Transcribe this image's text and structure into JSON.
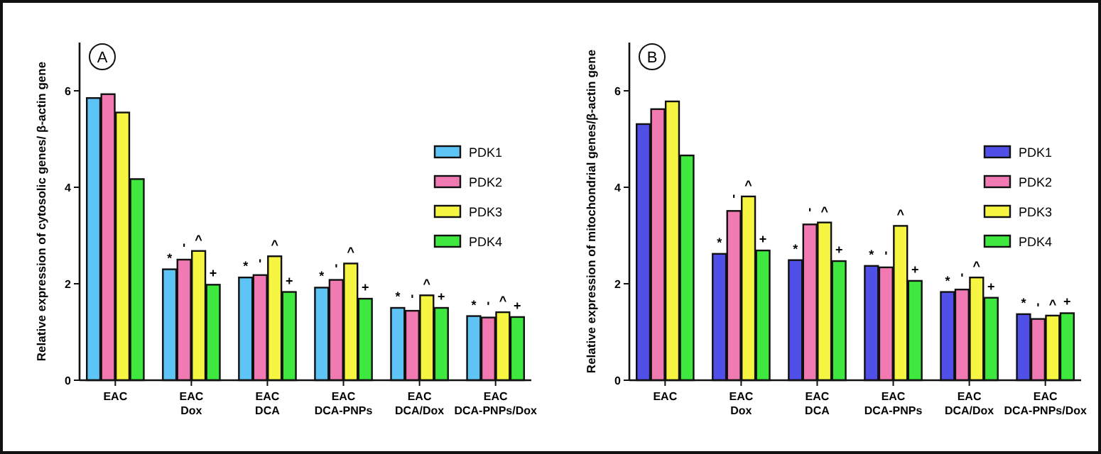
{
  "chart_data": [
    {
      "type": "bar",
      "title": "A",
      "ylabel": "Relative expression of cytosolic genes/ β-actin gene",
      "categories": [
        "EAC",
        "EAC\nDox",
        "EAC\nDCA",
        "EAC\nDCA-PNPs",
        "EAC\nDCA/Dox",
        "EAC\nDCA-PNPs/Dox"
      ],
      "series": [
        {
          "name": "PDK1",
          "color": "#5ec3f5",
          "values": [
            5.85,
            2.3,
            2.13,
            1.92,
            1.5,
            1.33
          ]
        },
        {
          "name": "PDK2",
          "color": "#f27ab2",
          "values": [
            5.93,
            2.5,
            2.18,
            2.08,
            1.44,
            1.3
          ]
        },
        {
          "name": "PDK3",
          "color": "#f5f542",
          "values": [
            5.55,
            2.68,
            2.57,
            2.42,
            1.76,
            1.41
          ]
        },
        {
          "name": "PDK4",
          "color": "#3ee83e",
          "values": [
            4.17,
            1.98,
            1.83,
            1.69,
            1.5,
            1.31
          ]
        }
      ],
      "ylim": [
        0,
        7
      ],
      "yticks": [
        0,
        2,
        4,
        6
      ],
      "grid": false,
      "legend": "right",
      "annotations": [
        "*",
        "'",
        "^",
        "+",
        "*",
        "'",
        "^",
        "+",
        "*",
        "'",
        "^",
        "+",
        "*",
        "'",
        "^",
        "+",
        "*",
        "'",
        "^",
        "+"
      ]
    },
    {
      "type": "bar",
      "title": "B",
      "ylabel": "Relative expression of mitochondrial genes/β-actin gene",
      "categories": [
        "EAC",
        "EAC\nDox",
        "EAC\nDCA",
        "EAC\nDCA-PNPs",
        "EAC\nDCA/Dox",
        "EAC\nDCA-PNPs/Dox"
      ],
      "series": [
        {
          "name": "PDK1",
          "color": "#5050e8",
          "values": [
            5.31,
            2.62,
            2.49,
            2.37,
            1.83,
            1.37
          ]
        },
        {
          "name": "PDK2",
          "color": "#f27ab2",
          "values": [
            5.62,
            3.51,
            3.23,
            2.34,
            1.88,
            1.27
          ]
        },
        {
          "name": "PDK3",
          "color": "#f5f542",
          "values": [
            5.78,
            3.81,
            3.27,
            3.2,
            2.13,
            1.34
          ]
        },
        {
          "name": "PDK4",
          "color": "#3ee83e",
          "values": [
            4.66,
            2.69,
            2.47,
            2.06,
            1.71,
            1.39
          ]
        }
      ],
      "ylim": [
        0,
        7
      ],
      "yticks": [
        0,
        2,
        4,
        6
      ],
      "grid": false,
      "legend": "right",
      "annotations": [
        "*",
        "'",
        "^",
        "+",
        "*",
        "'",
        "^",
        "+",
        "*",
        "'",
        "^",
        "+",
        "*",
        "'",
        "^",
        "+",
        "*",
        "'",
        "^",
        "+"
      ]
    }
  ]
}
